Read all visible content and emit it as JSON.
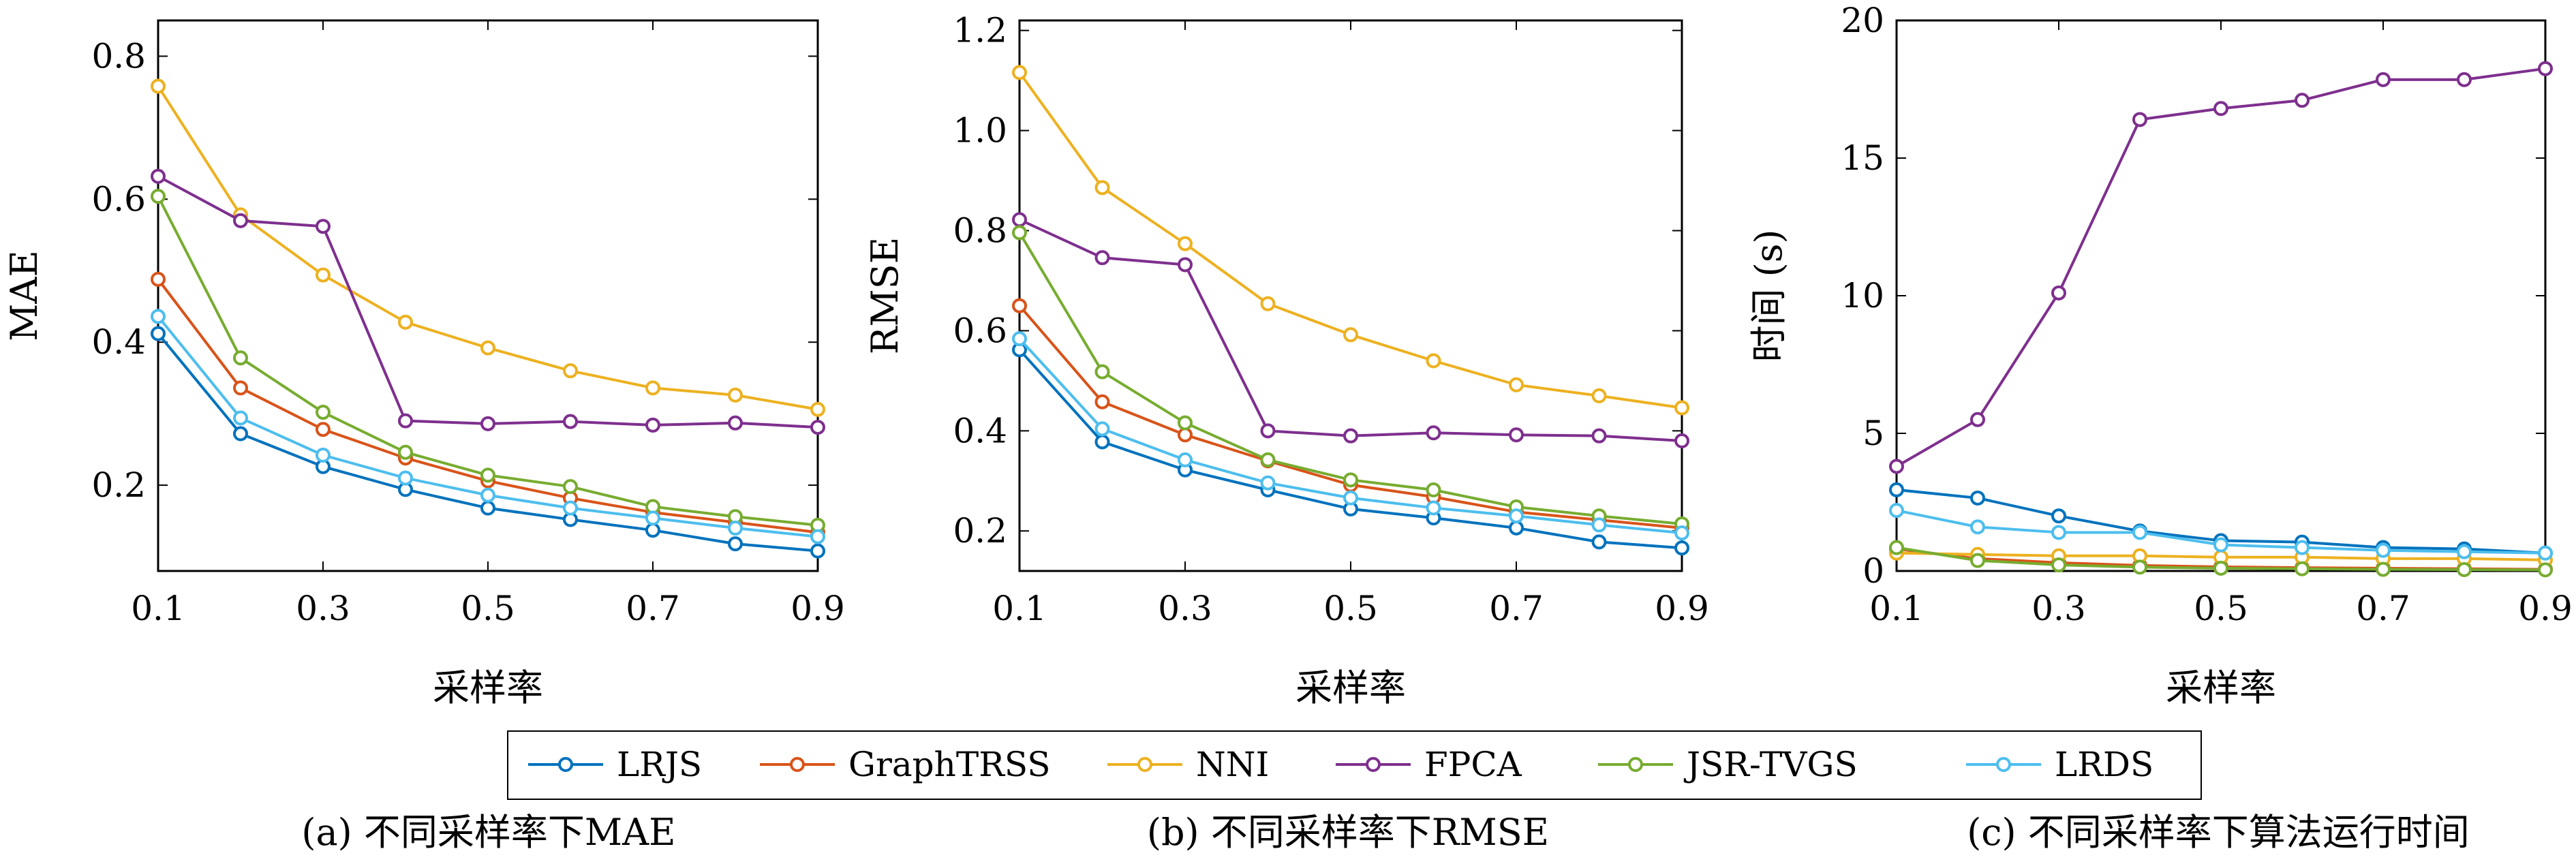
{
  "chart_data": [
    {
      "type": "line",
      "caption": "(a) 不同采样率下MAE",
      "xlabel": "采样率",
      "ylabel": "MAE",
      "xlim": [
        0.1,
        0.9
      ],
      "ylim": [
        0.08,
        0.85
      ],
      "xticks": [
        0.1,
        0.3,
        0.5,
        0.7,
        0.9
      ],
      "xtick_labels": [
        "0.1",
        "0.3",
        "0.5",
        "0.7",
        "0.9"
      ],
      "yticks": [
        0.2,
        0.4,
        0.6,
        0.8
      ],
      "ytick_labels": [
        "0.2",
        "0.4",
        "0.6",
        "0.8"
      ],
      "x": [
        0.1,
        0.2,
        0.3,
        0.4,
        0.5,
        0.6,
        0.7,
        0.8,
        0.9
      ],
      "series": [
        {
          "name": "LRJS",
          "values": [
            0.412,
            0.272,
            0.226,
            0.194,
            0.168,
            0.152,
            0.137,
            0.118,
            0.108
          ]
        },
        {
          "name": "GraphTRSS",
          "values": [
            0.488,
            0.336,
            0.278,
            0.238,
            0.206,
            0.182,
            0.162,
            0.148,
            0.134
          ]
        },
        {
          "name": "NNI",
          "values": [
            0.758,
            0.578,
            0.494,
            0.428,
            0.392,
            0.36,
            0.336,
            0.326,
            0.306
          ]
        },
        {
          "name": "FPCA",
          "values": [
            0.632,
            0.57,
            0.562,
            0.29,
            0.286,
            0.289,
            0.284,
            0.287,
            0.281
          ]
        },
        {
          "name": "JSR-TVGS",
          "values": [
            0.604,
            0.378,
            0.302,
            0.246,
            0.214,
            0.198,
            0.17,
            0.156,
            0.144
          ]
        },
        {
          "name": "LRDS",
          "values": [
            0.436,
            0.294,
            0.242,
            0.21,
            0.186,
            0.168,
            0.154,
            0.14,
            0.128
          ]
        }
      ]
    },
    {
      "type": "line",
      "caption": "(b) 不同采样率下RMSE",
      "xlabel": "采样率",
      "ylabel": "RMSE",
      "xlim": [
        0.1,
        0.9
      ],
      "ylim": [
        0.12,
        1.22
      ],
      "xticks": [
        0.1,
        0.3,
        0.5,
        0.7,
        0.9
      ],
      "xtick_labels": [
        "0.1",
        "0.3",
        "0.5",
        "0.7",
        "0.9"
      ],
      "yticks": [
        0.2,
        0.4,
        0.6,
        0.8,
        1.0,
        1.2
      ],
      "ytick_labels": [
        "0.2",
        "0.4",
        "0.6",
        "0.8",
        "1.0",
        "1.2"
      ],
      "x": [
        0.1,
        0.2,
        0.3,
        0.4,
        0.5,
        0.6,
        0.7,
        0.8,
        0.9
      ],
      "series": [
        {
          "name": "LRJS",
          "values": [
            0.562,
            0.378,
            0.322,
            0.282,
            0.244,
            0.226,
            0.206,
            0.178,
            0.166
          ]
        },
        {
          "name": "GraphTRSS",
          "values": [
            0.65,
            0.458,
            0.392,
            0.34,
            0.292,
            0.268,
            0.238,
            0.222,
            0.206
          ]
        },
        {
          "name": "NNI",
          "values": [
            1.116,
            0.886,
            0.774,
            0.654,
            0.592,
            0.54,
            0.492,
            0.47,
            0.446
          ]
        },
        {
          "name": "FPCA",
          "values": [
            0.822,
            0.746,
            0.732,
            0.4,
            0.39,
            0.396,
            0.392,
            0.39,
            0.38
          ]
        },
        {
          "name": "JSR-TVGS",
          "values": [
            0.796,
            0.518,
            0.416,
            0.342,
            0.302,
            0.282,
            0.248,
            0.23,
            0.214
          ]
        },
        {
          "name": "LRDS",
          "values": [
            0.584,
            0.404,
            0.342,
            0.296,
            0.266,
            0.246,
            0.23,
            0.212,
            0.196
          ]
        }
      ]
    },
    {
      "type": "line",
      "caption": "(c) 不同采样率下算法运行时间",
      "xlabel": "采样率",
      "ylabel": "时间 (s)",
      "xlim": [
        0.1,
        0.9
      ],
      "ylim": [
        0,
        20
      ],
      "xticks": [
        0.1,
        0.3,
        0.5,
        0.7,
        0.9
      ],
      "xtick_labels": [
        "0.1",
        "0.3",
        "0.5",
        "0.7",
        "0.9"
      ],
      "yticks": [
        0,
        5,
        10,
        15,
        20
      ],
      "ytick_labels": [
        "0",
        "5",
        "10",
        "15",
        "20"
      ],
      "x": [
        0.1,
        0.2,
        0.3,
        0.4,
        0.5,
        0.6,
        0.7,
        0.8,
        0.9
      ],
      "series": [
        {
          "name": "LRJS",
          "values": [
            2.95,
            2.65,
            2.0,
            1.45,
            1.1,
            1.05,
            0.85,
            0.8,
            0.65
          ]
        },
        {
          "name": "GraphTRSS",
          "values": [
            0.8,
            0.45,
            0.3,
            0.2,
            0.15,
            0.12,
            0.1,
            0.08,
            0.06
          ]
        },
        {
          "name": "NNI",
          "values": [
            0.65,
            0.6,
            0.55,
            0.55,
            0.5,
            0.5,
            0.45,
            0.45,
            0.4
          ]
        },
        {
          "name": "FPCA",
          "values": [
            3.8,
            5.5,
            10.1,
            16.4,
            16.8,
            17.1,
            17.85,
            17.85,
            18.25
          ]
        },
        {
          "name": "JSR-TVGS",
          "values": [
            0.85,
            0.38,
            0.22,
            0.14,
            0.1,
            0.08,
            0.06,
            0.05,
            0.04
          ]
        },
        {
          "name": "LRDS",
          "values": [
            2.2,
            1.6,
            1.4,
            1.4,
            0.95,
            0.85,
            0.75,
            0.7,
            0.65
          ]
        }
      ]
    }
  ],
  "legend": {
    "placement": "bottom-center",
    "items": [
      {
        "name": "LRJS",
        "color": "#0072BD"
      },
      {
        "name": "GraphTRSS",
        "color": "#D95319"
      },
      {
        "name": "NNI",
        "color": "#EDB120"
      },
      {
        "name": "FPCA",
        "color": "#7E2F8E"
      },
      {
        "name": "JSR-TVGS",
        "color": "#77AC30"
      },
      {
        "name": "LRDS",
        "color": "#4DBEEE"
      }
    ]
  }
}
